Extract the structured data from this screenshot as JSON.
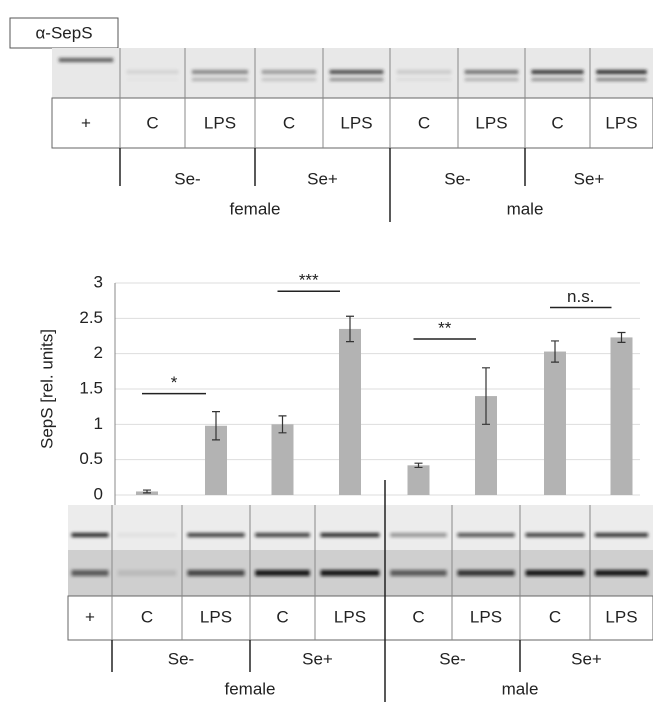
{
  "top_blot": {
    "antibody": "α-SepS",
    "lanes": [
      "+",
      "C",
      "LPS",
      "C",
      "LPS",
      "C",
      "LPS",
      "C",
      "LPS"
    ],
    "groups": [
      "Se-",
      "Se+",
      "Se-",
      "Se+"
    ],
    "sexes": [
      "female",
      "male"
    ]
  },
  "chart_data": {
    "type": "bar",
    "y_label": "SepS [rel. units]",
    "categories": [
      "+",
      "C",
      "LPS",
      "C",
      "LPS",
      "C",
      "LPS",
      "C",
      "LPS"
    ],
    "values": [
      null,
      0.05,
      0.98,
      1.0,
      2.35,
      0.42,
      1.4,
      2.03,
      2.23
    ],
    "errors": [
      null,
      0.02,
      0.2,
      0.12,
      0.18,
      0.03,
      0.4,
      0.15,
      0.07
    ],
    "color": "#b3b3b3",
    "ylim": [
      0,
      3
    ],
    "yticks": [
      0,
      0.5,
      1,
      1.5,
      2,
      2.5,
      3
    ],
    "grid": true,
    "annotations": [
      "*",
      "***",
      "**",
      "n.s."
    ],
    "groups": [
      "Se-",
      "Se+",
      "Se-",
      "Se+"
    ],
    "sexes": [
      "female",
      "male"
    ]
  }
}
